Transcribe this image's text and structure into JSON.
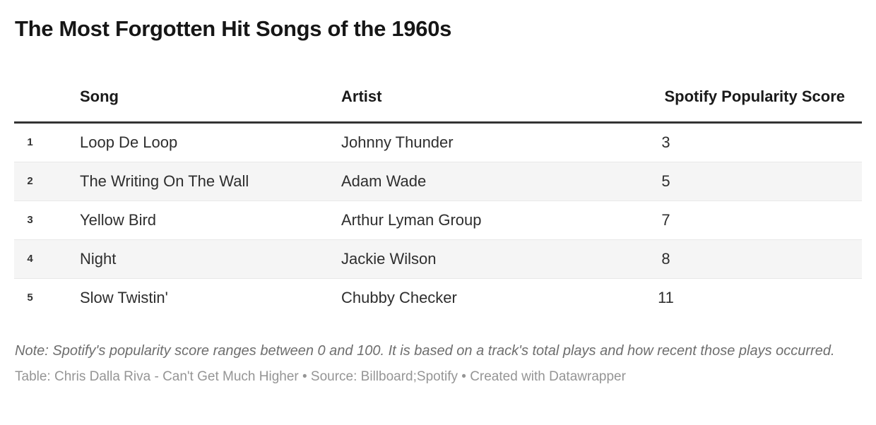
{
  "title": "The Most Forgotten Hit Songs of the 1960s",
  "chart_data": {
    "type": "table",
    "title": "The Most Forgotten Hit Songs of the 1960s",
    "columns": {
      "rank": "",
      "song": "Song",
      "artist": "Artist",
      "score": "Spotify Popularity Score"
    },
    "rows": [
      {
        "rank": "1",
        "song": "Loop De Loop",
        "artist": "Johnny Thunder",
        "score": "3"
      },
      {
        "rank": "2",
        "song": "The Writing On The Wall",
        "artist": "Adam Wade",
        "score": "5"
      },
      {
        "rank": "3",
        "song": "Yellow Bird",
        "artist": "Arthur Lyman Group",
        "score": "7"
      },
      {
        "rank": "4",
        "song": "Night",
        "artist": "Jackie Wilson",
        "score": "8"
      },
      {
        "rank": "5",
        "song": "Slow Twistin'",
        "artist": "Chubby Checker",
        "score": "11"
      }
    ],
    "score_range_note": "0 to 100",
    "layout_hints": {
      "zebra_striping": true,
      "rank_column": true,
      "score_values_alignment": "center",
      "score_header_alignment": "right"
    }
  },
  "note": "Note: Spotify's popularity score ranges between 0 and 100. It is based on a track's total plays and how recent those plays occurred.",
  "footer": "Table: Chris Dalla Riva - Can't Get Much Higher • Source: Billboard;Spotify • Created with Datawrapper",
  "colors": {
    "title_text": "#161616",
    "body_text": "#2e2e2e",
    "header_rule": "#333333",
    "zebra_row": "#f5f5f5",
    "row_divider": "#e8e8e8",
    "note_text": "#6e6e6e",
    "footer_text": "#959595",
    "background": "#ffffff"
  }
}
